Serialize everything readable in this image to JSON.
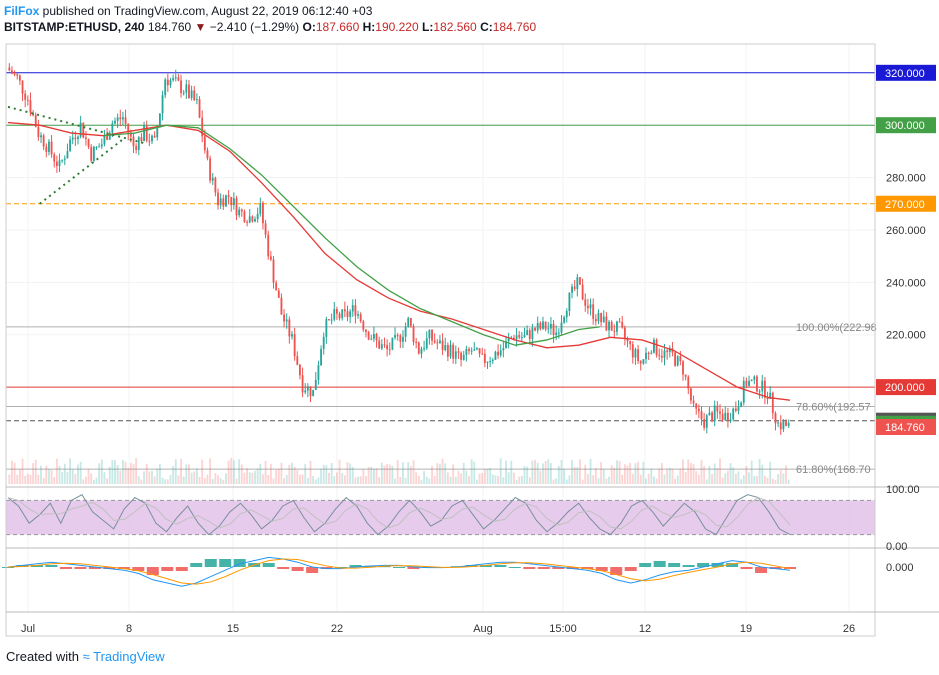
{
  "header": {
    "brand": "FilFox",
    "published": " published on TradingView.com, August 22, 2019 06:12:40 +03",
    "symbol": "BITSTAMP:ETHUSD, 240",
    "price": "184.760",
    "change": "−2.410 (−1.29%)",
    "o_label": "O:",
    "o": "187.660",
    "h_label": "H:",
    "h": "190.220",
    "l_label": "L:",
    "l": "182.560",
    "c_label": "C:",
    "c": "184.760"
  },
  "footer": {
    "prefix": "Created with",
    "brand": "TradingView"
  },
  "colors": {
    "up": "#26a69a",
    "down": "#ef5350",
    "ma_red": "#e53935",
    "ma_green": "#43a047",
    "level_blue": "#1a1ad6",
    "level_green": "#43a047",
    "level_orange": "#ff9800",
    "level_red": "#e53935",
    "fib": "#b0b0b0",
    "stoch_fill": "#e1bee7"
  },
  "chart_data": {
    "type": "candlestick",
    "symbol": "BITSTAMP:ETHUSD",
    "interval": "240",
    "y_axis_ticks": [
      "320.000",
      "300.000",
      "280.000",
      "260.000",
      "240.000",
      "220.000",
      "200.000",
      "186.000"
    ],
    "ylim": [
      163,
      331
    ],
    "x_tick_labels": [
      "Jul",
      "8",
      "15",
      "22",
      "Aug",
      "15:00",
      "12",
      "19",
      "26"
    ],
    "price_levels": [
      {
        "price": 320,
        "label": "320.000",
        "color": "#1a1ad6",
        "style": "solid"
      },
      {
        "price": 300,
        "label": "300.000",
        "color": "#43a047",
        "style": "solid"
      },
      {
        "price": 270,
        "label": "270.000",
        "color": "#ff9800",
        "style": "dashed"
      },
      {
        "price": 200,
        "label": "200.000",
        "color": "#e53935",
        "style": "solid"
      },
      {
        "price": 187.17,
        "label": "187.170",
        "color": "#555555",
        "style": "dashed"
      },
      {
        "price": 186,
        "label": "186.000",
        "color": "#43a047",
        "style": "badge"
      },
      {
        "price": 184.76,
        "label": "184.760",
        "color": "#ef5350",
        "style": "badge"
      }
    ],
    "fib_levels": [
      {
        "price": 222.98,
        "label": "100.00%(222.98"
      },
      {
        "price": 192.57,
        "label": "78.60%(192.57"
      },
      {
        "price": 168.7,
        "label": "61.80%(168.70"
      }
    ],
    "price_path": [
      [
        0,
        322
      ],
      [
        1,
        318
      ],
      [
        2,
        310
      ],
      [
        3,
        297
      ],
      [
        4,
        291
      ],
      [
        5,
        284
      ],
      [
        6,
        294
      ],
      [
        7,
        300
      ],
      [
        8,
        289
      ],
      [
        9,
        293
      ],
      [
        10,
        301
      ],
      [
        11,
        303
      ],
      [
        12,
        292
      ],
      [
        13,
        297
      ],
      [
        14,
        293
      ],
      [
        15,
        318
      ],
      [
        16,
        316
      ],
      [
        17,
        313
      ],
      [
        18,
        308
      ],
      [
        19,
        285
      ],
      [
        20,
        271
      ],
      [
        21,
        273
      ],
      [
        22,
        267
      ],
      [
        23,
        265
      ],
      [
        24,
        268
      ],
      [
        25,
        247
      ],
      [
        26,
        228
      ],
      [
        27,
        218
      ],
      [
        28,
        201
      ],
      [
        29,
        198
      ],
      [
        30,
        222
      ],
      [
        31,
        227
      ],
      [
        32,
        227
      ],
      [
        33,
        230
      ],
      [
        34,
        222
      ],
      [
        35,
        217
      ],
      [
        36,
        214
      ],
      [
        37,
        218
      ],
      [
        38,
        225
      ],
      [
        39,
        214
      ],
      [
        40,
        219
      ],
      [
        41,
        216
      ],
      [
        42,
        214
      ],
      [
        43,
        210
      ],
      [
        44,
        214
      ],
      [
        45,
        210
      ],
      [
        46,
        212
      ],
      [
        47,
        215
      ],
      [
        48,
        220
      ],
      [
        49,
        219
      ],
      [
        50,
        222
      ],
      [
        51,
        223
      ],
      [
        52,
        221
      ],
      [
        53,
        232
      ],
      [
        54,
        239
      ],
      [
        55,
        231
      ],
      [
        56,
        226
      ],
      [
        57,
        223
      ],
      [
        58,
        222
      ],
      [
        59,
        215
      ],
      [
        60,
        209
      ],
      [
        61,
        216
      ],
      [
        62,
        213
      ],
      [
        63,
        212
      ],
      [
        64,
        207
      ],
      [
        65,
        191
      ],
      [
        66,
        187
      ],
      [
        67,
        190
      ],
      [
        68,
        189
      ],
      [
        69,
        192
      ],
      [
        70,
        202
      ],
      [
        71,
        201
      ],
      [
        72,
        198
      ],
      [
        73,
        186
      ],
      [
        74,
        185
      ]
    ],
    "ma_red": [
      [
        0,
        301
      ],
      [
        3,
        300
      ],
      [
        6,
        297
      ],
      [
        9,
        296
      ],
      [
        12,
        298
      ],
      [
        15,
        300
      ],
      [
        18,
        298
      ],
      [
        21,
        290
      ],
      [
        24,
        278
      ],
      [
        27,
        265
      ],
      [
        30,
        251
      ],
      [
        33,
        241
      ],
      [
        36,
        234
      ],
      [
        39,
        229
      ],
      [
        42,
        226
      ],
      [
        45,
        222
      ],
      [
        48,
        218
      ],
      [
        51,
        215
      ],
      [
        54,
        216
      ],
      [
        57,
        219
      ],
      [
        60,
        218
      ],
      [
        63,
        214
      ],
      [
        66,
        207
      ],
      [
        69,
        200
      ],
      [
        72,
        196
      ],
      [
        74,
        195
      ]
    ],
    "ma_green": [
      [
        9,
        296
      ],
      [
        12,
        297
      ],
      [
        15,
        300
      ],
      [
        18,
        299
      ],
      [
        21,
        291
      ],
      [
        24,
        281
      ],
      [
        27,
        269
      ],
      [
        30,
        257
      ],
      [
        33,
        246
      ],
      [
        36,
        237
      ],
      [
        39,
        230
      ],
      [
        42,
        225
      ],
      [
        45,
        220
      ],
      [
        48,
        216
      ],
      [
        51,
        218
      ],
      [
        54,
        222
      ],
      [
        56,
        223
      ]
    ],
    "triangle": [
      [
        0,
        307
      ],
      [
        11,
        295
      ],
      [
        13,
        293
      ],
      [
        3,
        270
      ]
    ],
    "stochastic": {
      "ticks": [
        "100.00",
        "0.00"
      ],
      "upper_band": 80,
      "lower_band": 20,
      "k": [
        85,
        70,
        40,
        55,
        75,
        40,
        80,
        90,
        60,
        45,
        30,
        65,
        85,
        75,
        40,
        25,
        50,
        70,
        40,
        20,
        35,
        60,
        75,
        55,
        30,
        45,
        70,
        80,
        50,
        25,
        40,
        65,
        85,
        70,
        40,
        20,
        35,
        60,
        80,
        60,
        35,
        45,
        70,
        80,
        55,
        30,
        45,
        65,
        85,
        75,
        45,
        25,
        40,
        60,
        75,
        50,
        30,
        20,
        40,
        70,
        80,
        60,
        35,
        55,
        75,
        60,
        30,
        20,
        50,
        80,
        90,
        85,
        60,
        30,
        20
      ]
    },
    "macd": {
      "tick": "0.000",
      "macd": [
        0,
        0.5,
        1,
        1.5,
        1,
        0.5,
        0,
        -0.5,
        -1,
        -2,
        -4,
        -5,
        -6,
        -5,
        -3,
        -1,
        1,
        2,
        3,
        2.5,
        1.5,
        0,
        -0.5,
        -0.5,
        0,
        0.3,
        0.5,
        0.5,
        0,
        -0.2,
        -0.2,
        0,
        0.5,
        1,
        1.5,
        1.5,
        1,
        0.5,
        0,
        -0.5,
        -1,
        -2,
        -4,
        -5,
        -4,
        -2.5,
        -1.5,
        -1,
        0,
        1,
        2,
        1.5,
        0,
        -0.5,
        -1
      ]
    }
  }
}
